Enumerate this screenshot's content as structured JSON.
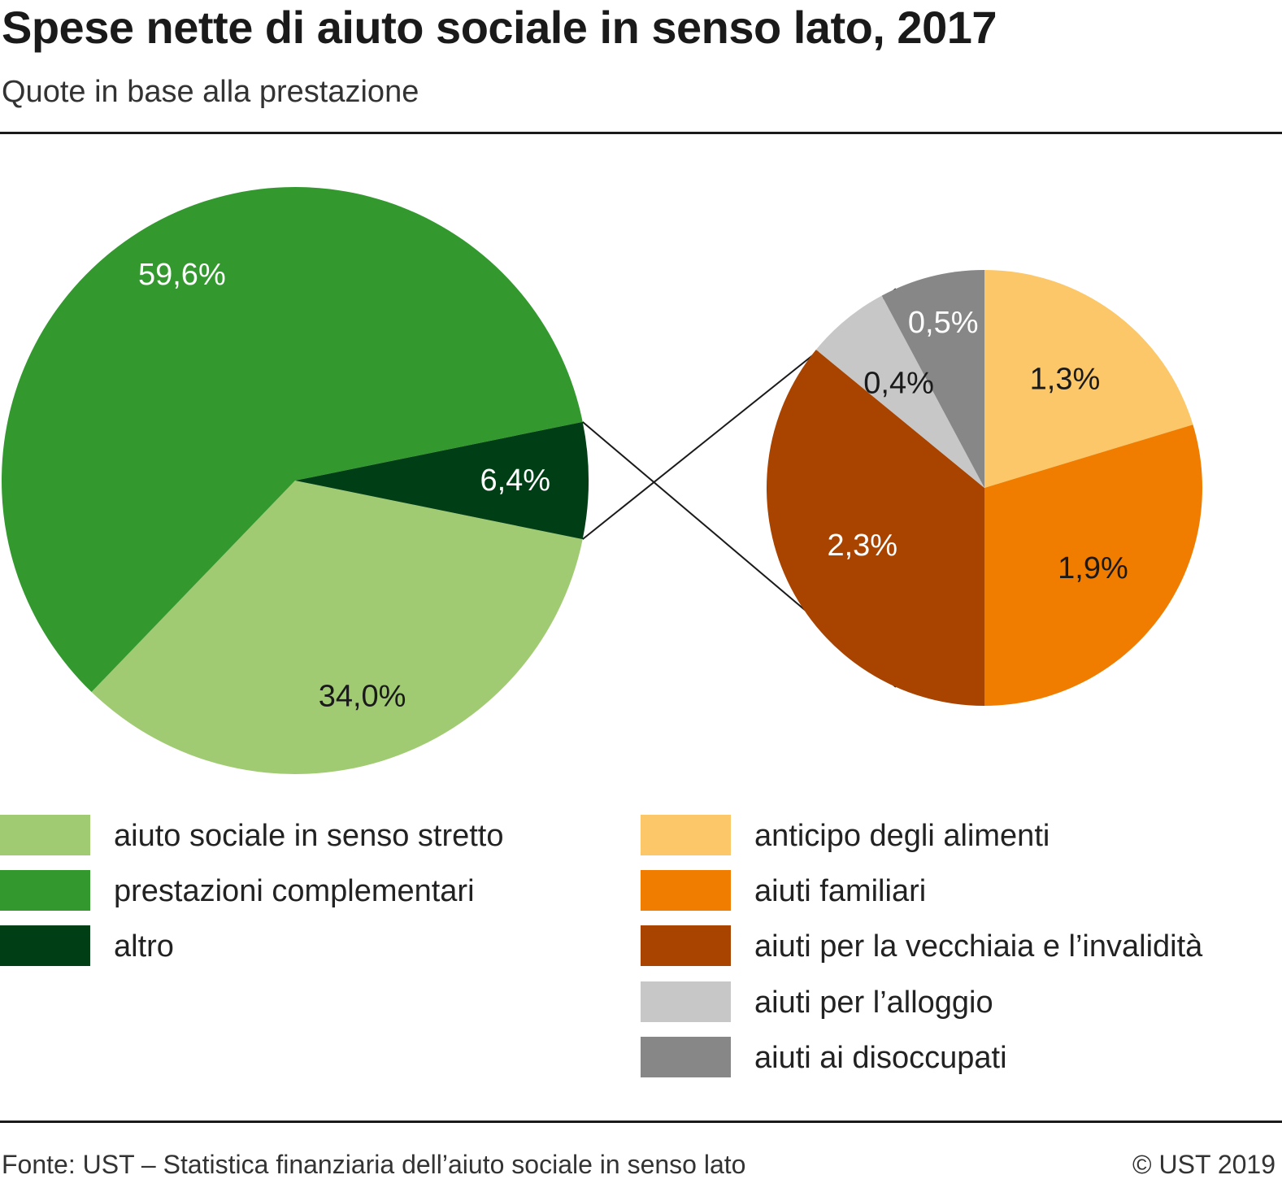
{
  "header": {
    "title": "Spese nette di aiuto sociale in senso lato, 2017",
    "subtitle": "Quote in base alla prestazione"
  },
  "footer": {
    "source": "Fonte: UST – Statistica finanziaria dell’aiuto sociale in senso lato",
    "copyright": "© UST 2019"
  },
  "chart_data": [
    {
      "type": "pie",
      "slices": [
        {
          "name": "aiuto sociale in senso stretto",
          "value": 34.0,
          "label": "34,0%",
          "color": "#a0cb73",
          "label_color": "#1a1a1a"
        },
        {
          "name": "prestazioni complementari",
          "value": 59.6,
          "label": "59,6%",
          "color": "#33992f",
          "label_color": "#ffffff"
        },
        {
          "name": "altro",
          "value": 6.4,
          "label": "6,4%",
          "color": "#003f15",
          "label_color": "#ffffff"
        }
      ]
    },
    {
      "type": "pie",
      "breakdown_of": "altro",
      "slices": [
        {
          "name": "anticipo degli alimenti",
          "value": 1.3,
          "label": "1,3%",
          "color": "#fbc768",
          "label_color": "#1a1a1a"
        },
        {
          "name": "aiuti familiari",
          "value": 1.9,
          "label": "1,9%",
          "color": "#f07d00",
          "label_color": "#1a1a1a"
        },
        {
          "name": "aiuti per la vecchiaia e l’invalidità",
          "value": 2.3,
          "label": "2,3%",
          "color": "#a94300",
          "label_color": "#ffffff"
        },
        {
          "name": "aiuti per l’alloggio",
          "value": 0.4,
          "label": "0,4%",
          "color": "#c6c7c6",
          "label_color": "#1a1a1a"
        },
        {
          "name": "aiuti ai disoccupati",
          "value": 0.5,
          "label": "0,5%",
          "color": "#878787",
          "label_color": "#ffffff"
        }
      ]
    }
  ],
  "legend": {
    "left": [
      {
        "label": "aiuto sociale in senso stretto",
        "color": "#a0cb73"
      },
      {
        "label": "prestazioni complementari",
        "color": "#33992f"
      },
      {
        "label": "altro",
        "color": "#003f15"
      }
    ],
    "right": [
      {
        "label": "anticipo degli alimenti",
        "color": "#fbc768"
      },
      {
        "label": "aiuti familiari",
        "color": "#f07d00"
      },
      {
        "label": "aiuti per la vecchiaia e l’invalidità",
        "color": "#a94300"
      },
      {
        "label": "aiuti per l’alloggio",
        "color": "#c6c7c6"
      },
      {
        "label": "aiuti ai disoccupati",
        "color": "#878787"
      }
    ]
  }
}
